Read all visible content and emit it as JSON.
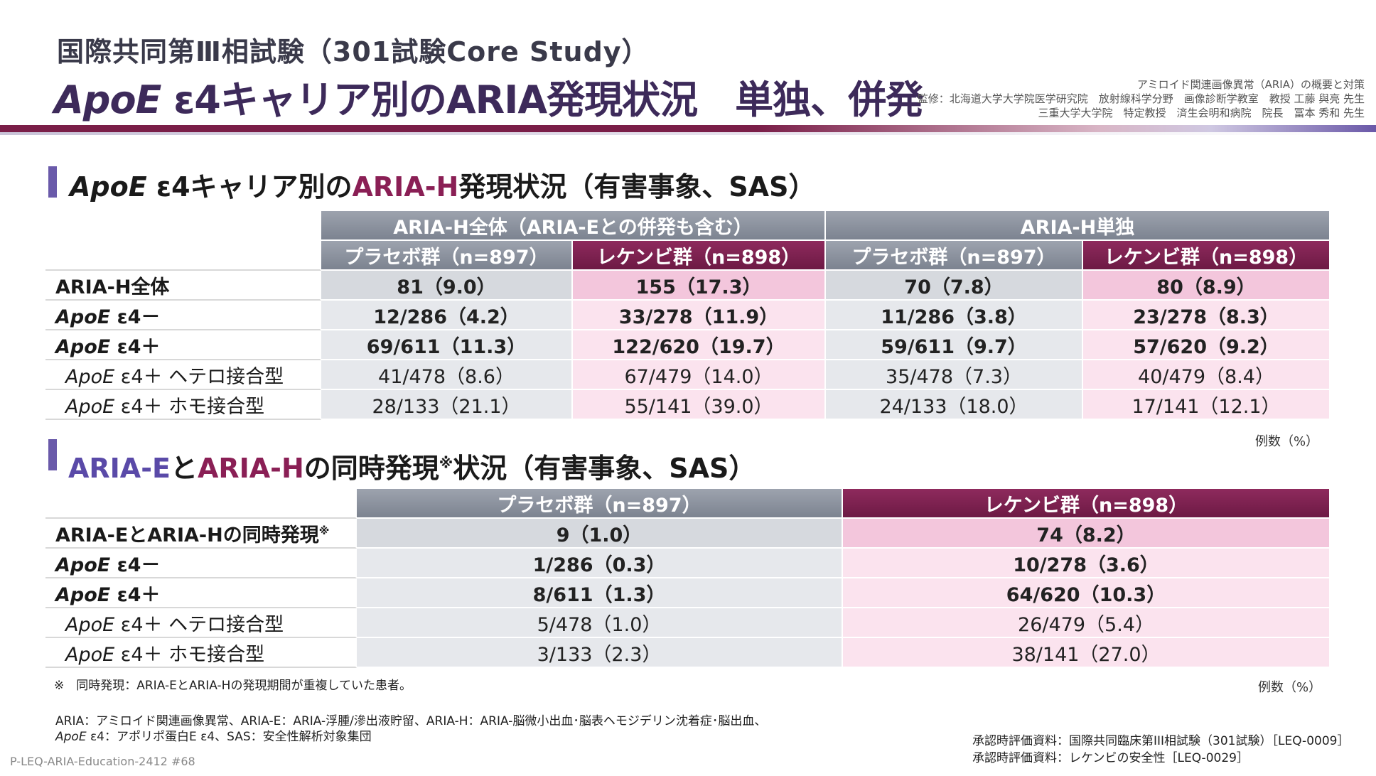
{
  "header": {
    "pre_title": "国際共同第Ⅲ相試験（301試験Core Study）",
    "title_italic": "ApoE",
    "title_rest": " ε4キャリア別のARIA発現状況　単独、併発",
    "credit_line1": "アミロイド関連画像異常（ARIA）の概要と対策",
    "credit_line2": "監修：北海道大学大学院医学研究院　放射線科学分野　画像診断学教室　教授 工藤 與亮 先生",
    "credit_line3": "三重大学大学院　特定教授　済生会明和病院　院長　冨本 秀和 先生"
  },
  "section1": {
    "title_italic": "ApoE",
    "title_a": " ε4キャリア別の",
    "title_b": "ARIA-H",
    "title_c": "発現状況（有害事象、SAS）",
    "group1": "ARIA-H全体（ARIA-Eとの併発も含む）",
    "group2": "ARIA-H単独",
    "col_placebo": "プラセボ群（n=897）",
    "col_lecanemab": "レケンビ群（n=898）",
    "rows": [
      {
        "label": "ARIA-H全体",
        "v": [
          "81（9.0）",
          "155（17.3）",
          "70（7.8）",
          "80（8.9）"
        ]
      },
      {
        "label_i": "ApoE",
        "label_r": " ε4－",
        "v": [
          "12/286（4.2）",
          "33/278（11.9）",
          "11/286（3.8）",
          "23/278（8.3）"
        ]
      },
      {
        "label_i": "ApoE",
        "label_r": " ε4＋",
        "v": [
          "69/611（11.3）",
          "122/620（19.7）",
          "59/611（9.7）",
          "57/620（9.2）"
        ]
      },
      {
        "label_i": "ApoE",
        "label_r": " ε4＋ ヘテロ接合型",
        "v": [
          "41/478（8.6）",
          "67/479（14.0）",
          "35/478（7.3）",
          "40/479（8.4）"
        ]
      },
      {
        "label_i": "ApoE",
        "label_r": " ε4＋ ホモ接合型",
        "v": [
          "28/133（21.1）",
          "55/141（39.0）",
          "24/133（18.0）",
          "17/141（12.1）"
        ]
      }
    ],
    "unit": "例数（%）"
  },
  "section2": {
    "title_a": "ARIA-E",
    "title_b": "と",
    "title_c": "ARIA-H",
    "title_d": "の同時発現",
    "title_sup": "※",
    "title_e": "状況（有害事象、SAS）",
    "col_placebo": "プラセボ群（n=897）",
    "col_lecanemab": "レケンビ群（n=898）",
    "rows": [
      {
        "label": "ARIA-EとARIA-Hの同時発現",
        "sup": "※",
        "v": [
          "9（1.0）",
          "74（8.2）"
        ]
      },
      {
        "label_i": "ApoE",
        "label_r": " ε4－",
        "v": [
          "1/286（0.3）",
          "10/278（3.6）"
        ]
      },
      {
        "label_i": "ApoE",
        "label_r": " ε4＋",
        "v": [
          "8/611（1.3）",
          "64/620（10.3）"
        ]
      },
      {
        "label_i": "ApoE",
        "label_r": " ε4＋ ヘテロ接合型",
        "v": [
          "5/478（1.0）",
          "26/479（5.4）"
        ]
      },
      {
        "label_i": "ApoE",
        "label_r": " ε4＋ ホモ接合型",
        "v": [
          "3/133（2.3）",
          "38/141（27.0）"
        ]
      }
    ],
    "note": "※　同時発現：ARIA-EとARIA-Hの発現期間が重複していた患者。",
    "unit": "例数（%）"
  },
  "footer": {
    "abbr1": "ARIA：アミロイド関連画像異常、ARIA-E：ARIA-浮腫/滲出液貯留、ARIA-H：ARIA-脳微小出血･脳表ヘモジデリン沈着症･脳出血、",
    "abbr2_i": "ApoE",
    "abbr2_r": " ε4：アポリポ蛋白E ε4、SAS：安全性解析対象集団",
    "ref1": "承認時評価資料：国際共同臨床第III相試験（301試験）［LEQ-0009］",
    "ref2": "承認時評価資料：レケンビの安全性［LEQ-0029］",
    "code": "P-LEQ-ARIA-Education-2412 #68"
  }
}
